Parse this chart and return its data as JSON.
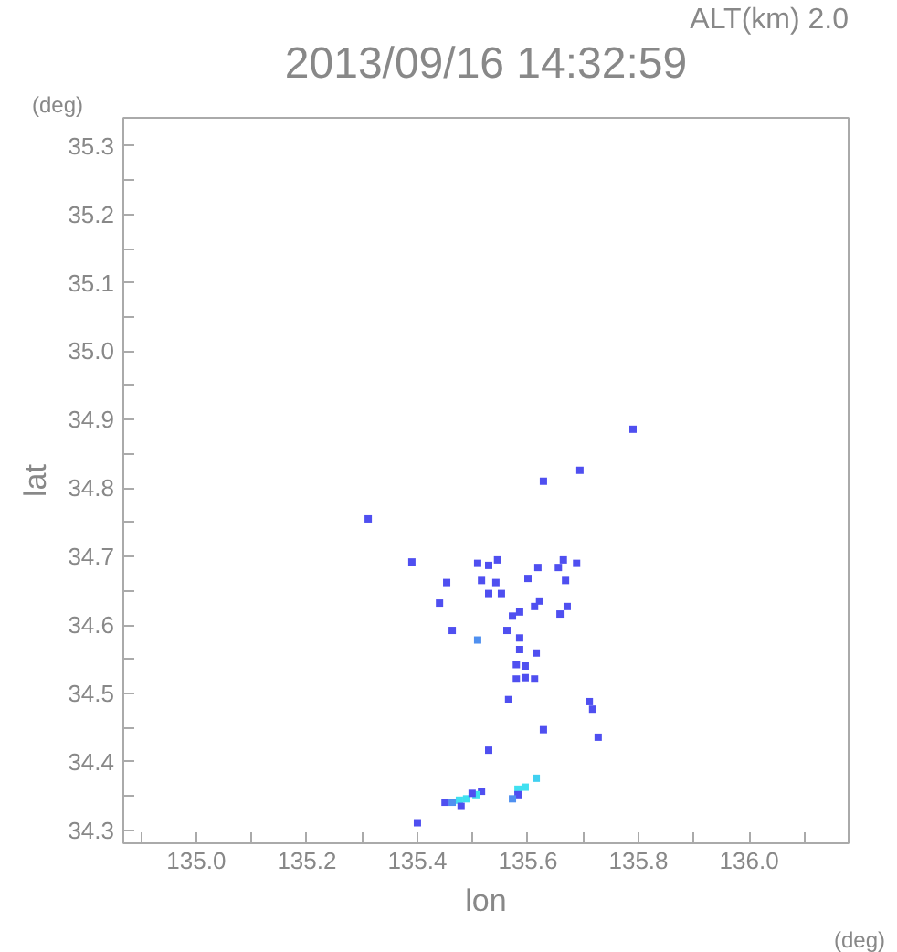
{
  "chart_data": {
    "type": "scatter",
    "title": "2013/09/16 14:32:59",
    "subtitle": "ALT(km) 2.0",
    "xlabel": "lon",
    "ylabel": "lat",
    "annotations": [
      "(deg)",
      "(deg)"
    ],
    "xlim": [
      134.868,
      136.18
    ],
    "ylim": [
      34.281,
      35.341
    ],
    "xticks": [
      {
        "value": 134.9,
        "label": null
      },
      {
        "value": 135.0,
        "label": "135.0"
      },
      {
        "value": 135.1,
        "label": null
      },
      135.2,
      {
        "value": 135.3,
        "label": null
      },
      135.4,
      {
        "value": 135.5,
        "label": null
      },
      135.6,
      {
        "value": 135.7,
        "label": null
      },
      135.8,
      {
        "value": 135.9,
        "label": null
      },
      {
        "value": 136.0,
        "label": "136.0"
      },
      {
        "value": 136.1,
        "label": null
      }
    ],
    "yticks": [
      34.3,
      {
        "value": 34.35,
        "label": null
      },
      34.4,
      {
        "value": 34.45,
        "label": null
      },
      34.5,
      {
        "value": 34.55,
        "label": null
      },
      34.6,
      {
        "value": 34.65,
        "label": null
      },
      34.7,
      {
        "value": 34.75,
        "label": null
      },
      34.8,
      {
        "value": 34.85,
        "label": null
      },
      34.9,
      {
        "value": 34.95,
        "label": null
      },
      {
        "value": 35.0,
        "label": "35.0"
      },
      {
        "value": 35.05,
        "label": null
      },
      35.1,
      {
        "value": 35.15,
        "label": null
      },
      35.2,
      {
        "value": 35.25,
        "label": null
      },
      35.3
    ],
    "grid": false,
    "marker": "square",
    "x": [
      135.79,
      135.694,
      135.628,
      135.311,
      135.39,
      135.509,
      135.529,
      135.545,
      135.618,
      135.664,
      135.688,
      135.655,
      135.6,
      135.668,
      135.453,
      135.516,
      135.542,
      135.552,
      135.529,
      135.44,
      135.621,
      135.612,
      135.671,
      135.572,
      135.585,
      135.658,
      135.463,
      135.562,
      135.585,
      135.509,
      135.585,
      135.615,
      135.579,
      135.595,
      135.579,
      135.595,
      135.612,
      135.565,
      135.711,
      135.717,
      135.628,
      135.727,
      135.529,
      135.615,
      135.582,
      135.595,
      135.582,
      135.572,
      135.516,
      135.506,
      135.489,
      135.476,
      135.463,
      135.45,
      135.479,
      135.499,
      135.4
    ],
    "values": [
      34.886,
      34.826,
      34.81,
      34.755,
      34.692,
      34.69,
      34.687,
      34.695,
      34.684,
      34.695,
      34.69,
      34.684,
      34.668,
      34.665,
      34.662,
      34.665,
      34.662,
      34.646,
      34.646,
      34.632,
      34.635,
      34.627,
      34.627,
      34.613,
      34.619,
      34.616,
      34.592,
      34.592,
      34.581,
      34.578,
      34.564,
      34.559,
      34.542,
      34.54,
      34.521,
      34.523,
      34.521,
      34.491,
      34.488,
      34.477,
      34.447,
      34.436,
      34.417,
      34.376,
      34.36,
      34.363,
      34.352,
      34.346,
      34.357,
      34.352,
      34.346,
      34.344,
      34.341,
      34.341,
      34.335,
      34.354,
      34.311
    ],
    "colors": [
      "#4f4ff0",
      "#4f4ff0",
      "#4f4ff0",
      "#4f4ff0",
      "#4f4ff0",
      "#4f4ff0",
      "#4f4ff0",
      "#4f4ff0",
      "#4f4ff0",
      "#4f4ff0",
      "#4f4ff0",
      "#4f4ff0",
      "#4f4ff0",
      "#4f4ff0",
      "#4f4ff0",
      "#4f4ff0",
      "#4f4ff0",
      "#4f4ff0",
      "#4f4ff0",
      "#4f4ff0",
      "#4f4ff0",
      "#4f4ff0",
      "#4f4ff0",
      "#4f4ff0",
      "#4f4ff0",
      "#4f4ff0",
      "#4f4ff0",
      "#4f4ff0",
      "#4f4ff0",
      "#4f90f0",
      "#4f4ff0",
      "#4f4ff0",
      "#4f4ff0",
      "#4f4ff0",
      "#4f4ff0",
      "#4f4ff0",
      "#4f4ff0",
      "#4f4ff0",
      "#4f4ff0",
      "#4f4ff0",
      "#4f4ff0",
      "#4f4ff0",
      "#4f4ff0",
      "#40d0f0",
      "#40e0f0",
      "#40e0f0",
      "#4f4ff0",
      "#4f90f0",
      "#4f4ff0",
      "#40e0f0",
      "#40e0f0",
      "#40e0f0",
      "#4f90f0",
      "#4f4ff0",
      "#4f4ff0",
      "#4f4ff0",
      "#4f4ff0"
    ]
  }
}
